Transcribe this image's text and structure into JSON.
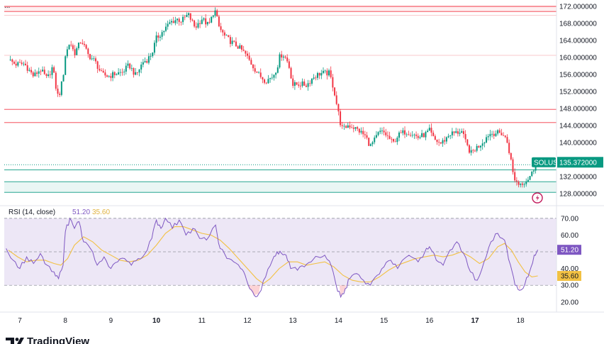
{
  "header": {
    "menu_dots": "..."
  },
  "colors": {
    "up": "#089981",
    "down": "#f23645",
    "rsi_line": "#7e57c2",
    "rsi_ma": "#f2c143",
    "rsi_band": "#ede7f6",
    "res_line": "#f23645",
    "sup_line": "#089981",
    "badge_bg": "#089981"
  },
  "chart_data": [
    {
      "type": "candlestick",
      "symbol": "SOLUSD",
      "ylim": [
        125.5,
        173.5
      ],
      "y_ticks": [
        {
          "value": 128,
          "label": "128.000000"
        },
        {
          "value": 132,
          "label": "132.000000"
        },
        {
          "value": 136,
          "label": "136.000000"
        },
        {
          "value": 140,
          "label": "140.000000"
        },
        {
          "value": 144,
          "label": "144.000000"
        },
        {
          "value": 148,
          "label": "148.000000"
        },
        {
          "value": 152,
          "label": "152.000000"
        },
        {
          "value": 156,
          "label": "156.000000"
        },
        {
          "value": 160,
          "label": "160.000000"
        },
        {
          "value": 164,
          "label": "164.000000"
        },
        {
          "value": 168,
          "label": "168.000000"
        },
        {
          "value": 172,
          "label": "172.000000"
        }
      ],
      "last_price": {
        "value": 135.372,
        "label": "135.372000"
      },
      "resistance_zones": [
        [
          170.8,
          172.0
        ],
        [
          147.8,
          147.8
        ],
        [
          144.7,
          144.7
        ]
      ],
      "support_zones": [
        [
          128.3,
          130.8
        ],
        [
          133.6,
          133.6
        ]
      ],
      "faint_levels": [
        169.9,
        160.5
      ],
      "dotted_level": 134.8,
      "x_ticks": [
        {
          "day": 7,
          "label": "7",
          "bold": false
        },
        {
          "day": 8,
          "label": "8",
          "bold": false
        },
        {
          "day": 9,
          "label": "9",
          "bold": false
        },
        {
          "day": 10,
          "label": "10",
          "bold": true
        },
        {
          "day": 11,
          "label": "11",
          "bold": false
        },
        {
          "day": 12,
          "label": "12",
          "bold": false
        },
        {
          "day": 13,
          "label": "13",
          "bold": false
        },
        {
          "day": 14,
          "label": "14",
          "bold": false
        },
        {
          "day": 15,
          "label": "15",
          "bold": false
        },
        {
          "day": 16,
          "label": "16",
          "bold": false
        },
        {
          "day": 17,
          "label": "17",
          "bold": true
        },
        {
          "day": 18,
          "label": "18",
          "bold": false
        }
      ],
      "price_path": [
        [
          6.75,
          159.5
        ],
        [
          6.9,
          158.4
        ],
        [
          7.1,
          158.5
        ],
        [
          7.3,
          155.6
        ],
        [
          7.45,
          157.2
        ],
        [
          7.6,
          154.9
        ],
        [
          7.72,
          157.8
        ],
        [
          7.8,
          152.5
        ],
        [
          7.85,
          150.4
        ],
        [
          7.95,
          155.5
        ],
        [
          8.0,
          160.5
        ],
        [
          8.1,
          163.7
        ],
        [
          8.2,
          160.9
        ],
        [
          8.35,
          164.1
        ],
        [
          8.5,
          160.6
        ],
        [
          8.65,
          159.1
        ],
        [
          8.8,
          156.0
        ],
        [
          8.95,
          155.6
        ],
        [
          9.1,
          156.2
        ],
        [
          9.25,
          156.5
        ],
        [
          9.4,
          158.2
        ],
        [
          9.55,
          155.7
        ],
        [
          9.7,
          158.9
        ],
        [
          9.8,
          159.5
        ],
        [
          9.9,
          160.9
        ],
        [
          10.0,
          164.5
        ],
        [
          10.15,
          166.2
        ],
        [
          10.3,
          168.2
        ],
        [
          10.45,
          169.0
        ],
        [
          10.55,
          168.6
        ],
        [
          10.7,
          170.1
        ],
        [
          10.85,
          167.0
        ],
        [
          11.0,
          169.1
        ],
        [
          11.15,
          167.5
        ],
        [
          11.28,
          171.3
        ],
        [
          11.38,
          167.0
        ],
        [
          11.5,
          165.0
        ],
        [
          11.65,
          163.6
        ],
        [
          11.8,
          162.5
        ],
        [
          11.95,
          160.9
        ],
        [
          12.1,
          158.3
        ],
        [
          12.25,
          155.9
        ],
        [
          12.4,
          154.5
        ],
        [
          12.55,
          155.5
        ],
        [
          12.65,
          157.5
        ],
        [
          12.72,
          160.6
        ],
        [
          12.8,
          160.6
        ],
        [
          12.9,
          158.6
        ],
        [
          13.0,
          153.5
        ],
        [
          13.15,
          153.8
        ],
        [
          13.3,
          153.5
        ],
        [
          13.45,
          155.4
        ],
        [
          13.6,
          156.3
        ],
        [
          13.8,
          156.3
        ],
        [
          13.9,
          152.5
        ],
        [
          13.97,
          148.5
        ],
        [
          14.05,
          144.2
        ],
        [
          14.1,
          143.0
        ],
        [
          14.2,
          144.1
        ],
        [
          14.3,
          143.8
        ],
        [
          14.45,
          142.8
        ],
        [
          14.6,
          141.4
        ],
        [
          14.7,
          139.1
        ],
        [
          14.8,
          140.7
        ],
        [
          14.9,
          142.5
        ],
        [
          15.0,
          142.3
        ],
        [
          15.1,
          141.2
        ],
        [
          15.2,
          139.8
        ],
        [
          15.3,
          141.6
        ],
        [
          15.45,
          142.5
        ],
        [
          15.6,
          142.3
        ],
        [
          15.75,
          141.2
        ],
        [
          15.9,
          141.9
        ],
        [
          16.0,
          142.8
        ],
        [
          16.1,
          140.7
        ],
        [
          16.25,
          139.8
        ],
        [
          16.35,
          140.8
        ],
        [
          16.45,
          142.1
        ],
        [
          16.6,
          142.3
        ],
        [
          16.7,
          142.8
        ],
        [
          16.78,
          140.5
        ],
        [
          16.85,
          138.6
        ],
        [
          16.92,
          137.5
        ],
        [
          17.0,
          138.5
        ],
        [
          17.1,
          139.4
        ],
        [
          17.2,
          140.5
        ],
        [
          17.3,
          142.0
        ],
        [
          17.45,
          142.3
        ],
        [
          17.6,
          142.1
        ],
        [
          17.7,
          140.5
        ],
        [
          17.78,
          136.5
        ],
        [
          17.85,
          131.8
        ],
        [
          17.95,
          130.3
        ],
        [
          18.05,
          130.6
        ],
        [
          18.15,
          131.3
        ],
        [
          18.25,
          132.8
        ],
        [
          18.35,
          135.372
        ]
      ]
    },
    {
      "type": "line",
      "title": "RSI (14, close)",
      "value_label_1": "51.20",
      "value_label_2": "35.60",
      "ylim": [
        14,
        75
      ],
      "y_ticks": [
        {
          "value": 20,
          "label": "20.00"
        },
        {
          "value": 30,
          "label": "30.00"
        },
        {
          "value": 40,
          "label": "40.00"
        },
        {
          "value": 60,
          "label": "60.00"
        },
        {
          "value": 70,
          "label": "70.00"
        }
      ],
      "bands": {
        "upper": 70,
        "middle": 50,
        "lower": 30
      },
      "rsi_badge": {
        "value": 51.2,
        "label": "51.20"
      },
      "ma_badge": {
        "value": 35.6,
        "label": "35.60"
      },
      "rsi_path": [
        [
          6.7,
          52
        ],
        [
          6.85,
          45
        ],
        [
          7.0,
          40
        ],
        [
          7.15,
          47
        ],
        [
          7.3,
          43
        ],
        [
          7.45,
          49
        ],
        [
          7.6,
          42
        ],
        [
          7.75,
          38
        ],
        [
          7.85,
          34
        ],
        [
          7.95,
          42
        ],
        [
          8.0,
          62
        ],
        [
          8.1,
          70
        ],
        [
          8.2,
          64
        ],
        [
          8.3,
          68
        ],
        [
          8.4,
          56
        ],
        [
          8.55,
          52
        ],
        [
          8.7,
          42
        ],
        [
          8.85,
          47
        ],
        [
          9.0,
          40
        ],
        [
          9.15,
          44
        ],
        [
          9.3,
          46
        ],
        [
          9.45,
          42
        ],
        [
          9.6,
          46
        ],
        [
          9.75,
          49
        ],
        [
          9.9,
          58
        ],
        [
          10.0,
          69
        ],
        [
          10.1,
          64
        ],
        [
          10.2,
          70
        ],
        [
          10.35,
          64
        ],
        [
          10.5,
          69
        ],
        [
          10.65,
          60
        ],
        [
          10.8,
          64
        ],
        [
          10.95,
          58
        ],
        [
          11.1,
          57
        ],
        [
          11.3,
          66
        ],
        [
          11.4,
          52
        ],
        [
          11.55,
          46
        ],
        [
          11.7,
          44
        ],
        [
          11.85,
          40
        ],
        [
          11.95,
          36
        ],
        [
          12.05,
          28
        ],
        [
          12.15,
          24
        ],
        [
          12.25,
          25
        ],
        [
          12.4,
          35
        ],
        [
          12.55,
          45
        ],
        [
          12.65,
          50
        ],
        [
          12.75,
          49
        ],
        [
          12.85,
          48
        ],
        [
          12.95,
          40
        ],
        [
          13.1,
          39
        ],
        [
          13.25,
          41
        ],
        [
          13.4,
          44
        ],
        [
          13.55,
          47
        ],
        [
          13.7,
          48
        ],
        [
          13.85,
          41
        ],
        [
          13.95,
          30
        ],
        [
          14.05,
          23
        ],
        [
          14.15,
          28
        ],
        [
          14.25,
          34
        ],
        [
          14.4,
          37
        ],
        [
          14.55,
          33
        ],
        [
          14.7,
          30
        ],
        [
          14.85,
          36
        ],
        [
          15.0,
          41
        ],
        [
          15.15,
          45
        ],
        [
          15.3,
          40
        ],
        [
          15.45,
          46
        ],
        [
          15.6,
          47
        ],
        [
          15.75,
          44
        ],
        [
          15.9,
          50
        ],
        [
          16.0,
          53
        ],
        [
          16.15,
          45
        ],
        [
          16.3,
          42
        ],
        [
          16.45,
          51
        ],
        [
          16.6,
          56
        ],
        [
          16.75,
          49
        ],
        [
          16.9,
          38
        ],
        [
          17.05,
          33
        ],
        [
          17.2,
          44
        ],
        [
          17.35,
          56
        ],
        [
          17.5,
          61
        ],
        [
          17.65,
          57
        ],
        [
          17.78,
          42
        ],
        [
          17.88,
          30
        ],
        [
          17.98,
          27
        ],
        [
          18.1,
          31
        ],
        [
          18.2,
          38
        ],
        [
          18.3,
          48
        ],
        [
          18.38,
          51.2
        ]
      ],
      "ma_path": [
        [
          6.75,
          51
        ],
        [
          6.95,
          47
        ],
        [
          7.15,
          44
        ],
        [
          7.35,
          45
        ],
        [
          7.55,
          45
        ],
        [
          7.75,
          43
        ],
        [
          7.9,
          42
        ],
        [
          8.05,
          46
        ],
        [
          8.2,
          54
        ],
        [
          8.4,
          59
        ],
        [
          8.6,
          56
        ],
        [
          8.8,
          51
        ],
        [
          9.0,
          48
        ],
        [
          9.2,
          45
        ],
        [
          9.4,
          44
        ],
        [
          9.6,
          45
        ],
        [
          9.8,
          48
        ],
        [
          10.0,
          54
        ],
        [
          10.2,
          61
        ],
        [
          10.4,
          65
        ],
        [
          10.6,
          65
        ],
        [
          10.8,
          63
        ],
        [
          11.0,
          61
        ],
        [
          11.2,
          60
        ],
        [
          11.4,
          57
        ],
        [
          11.6,
          52
        ],
        [
          11.8,
          46
        ],
        [
          12.0,
          40
        ],
        [
          12.2,
          34
        ],
        [
          12.35,
          31
        ],
        [
          12.5,
          34
        ],
        [
          12.7,
          40
        ],
        [
          12.9,
          44
        ],
        [
          13.1,
          44
        ],
        [
          13.3,
          42
        ],
        [
          13.5,
          43
        ],
        [
          13.7,
          44
        ],
        [
          13.9,
          41
        ],
        [
          14.1,
          36
        ],
        [
          14.3,
          33
        ],
        [
          14.5,
          32
        ],
        [
          14.7,
          32
        ],
        [
          14.9,
          35
        ],
        [
          15.1,
          39
        ],
        [
          15.3,
          42
        ],
        [
          15.5,
          44
        ],
        [
          15.7,
          46
        ],
        [
          15.9,
          47
        ],
        [
          16.1,
          48
        ],
        [
          16.3,
          47
        ],
        [
          16.5,
          48
        ],
        [
          16.7,
          50
        ],
        [
          16.9,
          47
        ],
        [
          17.1,
          43
        ],
        [
          17.3,
          46
        ],
        [
          17.5,
          53
        ],
        [
          17.65,
          55
        ],
        [
          17.8,
          51
        ],
        [
          17.95,
          44
        ],
        [
          18.1,
          38
        ],
        [
          18.25,
          35
        ],
        [
          18.38,
          35.6
        ]
      ]
    }
  ],
  "footer": {
    "logo_text": "TradingView"
  }
}
